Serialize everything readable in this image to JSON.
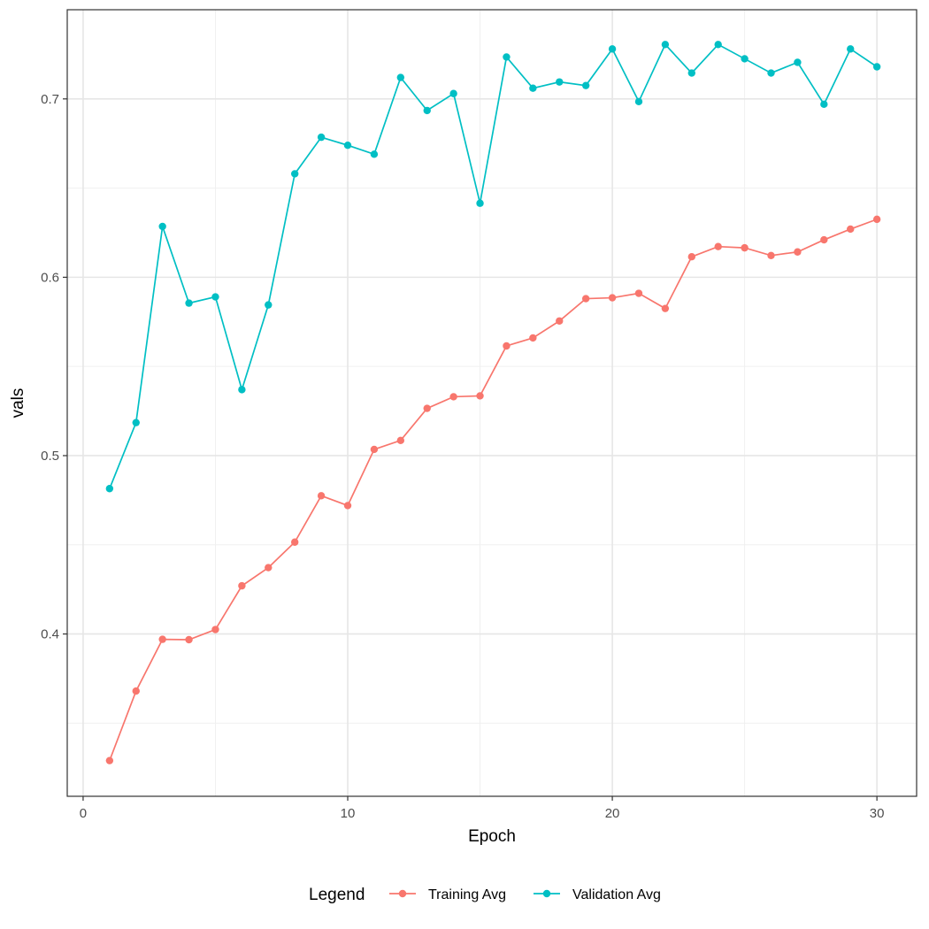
{
  "chart_data": {
    "type": "line",
    "title": "",
    "xlabel": "Epoch",
    "ylabel": "vals",
    "xlim": [
      -0.6,
      31.5
    ],
    "ylim": [
      0.309,
      0.75
    ],
    "x_ticks": [
      0,
      10,
      20,
      30
    ],
    "y_ticks": [
      0.4,
      0.5,
      0.6,
      0.7
    ],
    "x_tick_labels": [
      "0",
      "10",
      "20",
      "30"
    ],
    "y_tick_labels": [
      "0.4",
      "0.5",
      "0.6",
      "0.7"
    ],
    "grid": true,
    "legend": {
      "title": "Legend",
      "position": "bottom"
    },
    "x": [
      1,
      2,
      3,
      4,
      5,
      6,
      7,
      8,
      9,
      10,
      11,
      12,
      13,
      14,
      15,
      16,
      17,
      18,
      19,
      20,
      21,
      22,
      23,
      24,
      25,
      26,
      27,
      28,
      29,
      30
    ],
    "series": [
      {
        "name": "Training Avg",
        "color": "#F8766D",
        "values": [
          0.329,
          0.368,
          0.397,
          0.3968,
          0.4025,
          0.427,
          0.4372,
          0.4515,
          0.4775,
          0.472,
          0.5035,
          0.5085,
          0.5265,
          0.533,
          0.5335,
          0.5615,
          0.566,
          0.5755,
          0.588,
          0.5885,
          0.591,
          0.5825,
          0.6115,
          0.6172,
          0.6165,
          0.6122,
          0.6142,
          0.621,
          0.627,
          0.6325
        ]
      },
      {
        "name": "Validation Avg",
        "color": "#00BFC4",
        "values": [
          0.4815,
          0.5185,
          0.6285,
          0.5855,
          0.589,
          0.537,
          0.5845,
          0.658,
          0.6785,
          0.674,
          0.669,
          0.712,
          0.6935,
          0.703,
          0.6415,
          0.7235,
          0.706,
          0.7095,
          0.7075,
          0.728,
          0.6985,
          0.7305,
          0.7145,
          0.7305,
          0.7225,
          0.7145,
          0.7205,
          0.697,
          0.728,
          0.718
        ]
      }
    ]
  }
}
